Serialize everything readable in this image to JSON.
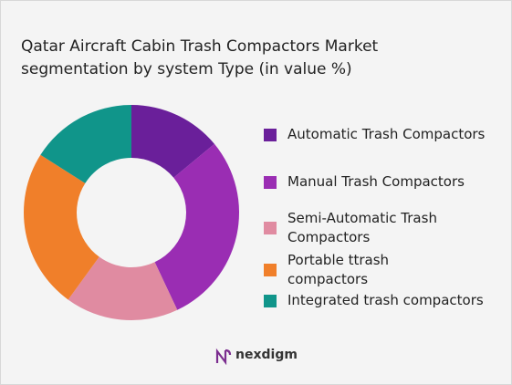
{
  "chart_data": {
    "type": "donut",
    "title": "Qatar Aircraft Cabin Trash Compactors Market segmentation by system Type (in value %)",
    "categories": [
      "Automatic Trash Compactors",
      "Manual Trash Compactors",
      "Semi-Automatic Trash Compactors",
      "Portable ttrash compactors",
      "Integrated trash compactors"
    ],
    "values": [
      14,
      29,
      17,
      24,
      16
    ],
    "colors": [
      "#6a1f9a",
      "#9a2db3",
      "#e08ba1",
      "#f07f2a",
      "#10958a"
    ]
  },
  "brand": "nexdigm"
}
